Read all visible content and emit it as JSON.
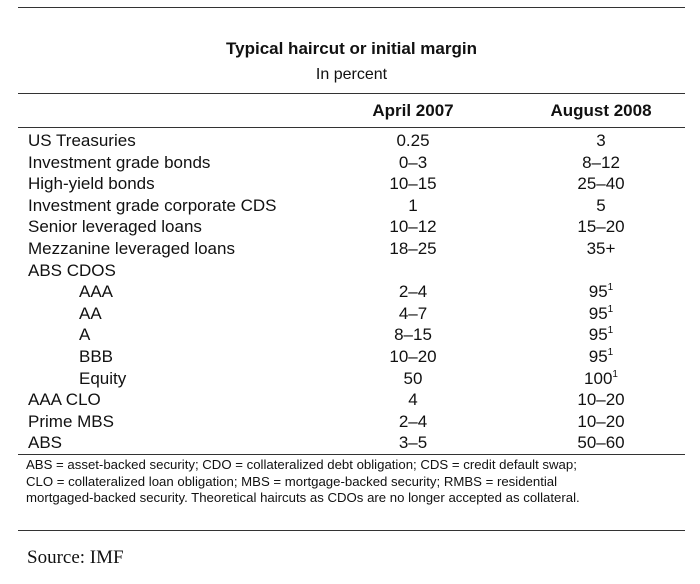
{
  "table": {
    "title": "Typical haircut or initial margin",
    "subtitle": "In percent",
    "columns": [
      "April 2007",
      "August 2008"
    ],
    "rows": [
      {
        "label": "US Treasuries",
        "indent": false,
        "april_2007": "0.25",
        "august_2008": "3",
        "note": ""
      },
      {
        "label": "Investment grade bonds",
        "indent": false,
        "april_2007": "0–3",
        "august_2008": "8–12",
        "note": ""
      },
      {
        "label": "High-yield bonds",
        "indent": false,
        "april_2007": "10–15",
        "august_2008": "25–40",
        "note": ""
      },
      {
        "label": "Investment grade corporate CDS",
        "indent": false,
        "april_2007": "1",
        "august_2008": "5",
        "note": ""
      },
      {
        "label": "Senior leveraged loans",
        "indent": false,
        "april_2007": "10–12",
        "august_2008": "15–20",
        "note": ""
      },
      {
        "label": "Mezzanine leveraged loans",
        "indent": false,
        "april_2007": "18–25",
        "august_2008": "35+",
        "note": ""
      },
      {
        "label": "ABS CDOS",
        "indent": false,
        "april_2007": "",
        "august_2008": "",
        "note": ""
      },
      {
        "label": "AAA",
        "indent": true,
        "april_2007": "2–4",
        "august_2008": "95",
        "note": "1"
      },
      {
        "label": "AA",
        "indent": true,
        "april_2007": "4–7",
        "august_2008": "95",
        "note": "1"
      },
      {
        "label": "A",
        "indent": true,
        "april_2007": "8–15",
        "august_2008": "95",
        "note": "1"
      },
      {
        "label": "BBB",
        "indent": true,
        "april_2007": "10–20",
        "august_2008": "95",
        "note": "1"
      },
      {
        "label": "Equity",
        "indent": true,
        "april_2007": "50",
        "august_2008": "100",
        "note": "1"
      },
      {
        "label": "AAA CLO",
        "indent": false,
        "april_2007": "4",
        "august_2008": "10–20",
        "note": ""
      },
      {
        "label": "Prime MBS",
        "indent": false,
        "april_2007": "2–4",
        "august_2008": "10–20",
        "note": ""
      },
      {
        "label": "ABS",
        "indent": false,
        "april_2007": "3–5",
        "august_2008": "50–60",
        "note": ""
      }
    ],
    "notes": [
      "ABS = asset-backed security; CDO = collateralized debt obligation; CDS = credit default swap;",
      "CLO = collateralized loan obligation; MBS = mortgage-backed security; RMBS = residential",
      "mortgaged-backed security. Theoretical haircuts as CDOs are no longer accepted as collateral."
    ]
  },
  "source": "Source: IMF"
}
